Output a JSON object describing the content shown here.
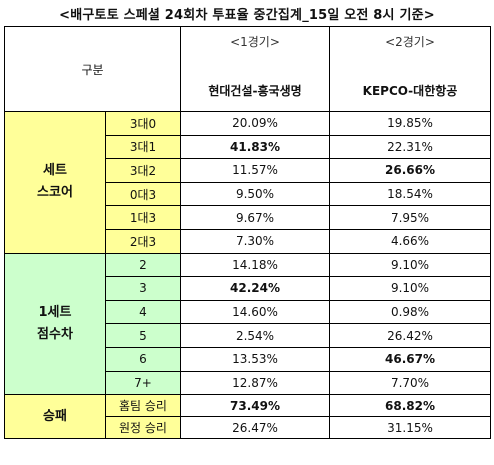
{
  "title": "<배구토토 스페셜 24회차 투표율 중간집계_15일 오전 8시 기준>",
  "header": {
    "category": "구분",
    "col1_round": "<1경기>",
    "col1_match": "현대건설-흥국생명",
    "col2_round": "<2경기>",
    "col2_match": "KEPCO-대한항공"
  },
  "groups": [
    {
      "label_line1": "세트",
      "label_line2": "스코어",
      "color": "#ffff99",
      "rows": [
        {
          "label": "3대0",
          "v1": "20.09%",
          "v2": "19.85%",
          "b1": false,
          "b2": false
        },
        {
          "label": "3대1",
          "v1": "41.83%",
          "v2": "22.31%",
          "b1": true,
          "b2": false
        },
        {
          "label": "3대2",
          "v1": "11.57%",
          "v2": "26.66%",
          "b1": false,
          "b2": true
        },
        {
          "label": "0대3",
          "v1": "9.50%",
          "v2": "18.54%",
          "b1": false,
          "b2": false
        },
        {
          "label": "1대3",
          "v1": "9.67%",
          "v2": "7.95%",
          "b1": false,
          "b2": false
        },
        {
          "label": "2대3",
          "v1": "7.30%",
          "v2": "4.66%",
          "b1": false,
          "b2": false
        }
      ]
    },
    {
      "label_line1": "1세트",
      "label_line2": "점수차",
      "color": "#ccffcc",
      "rows": [
        {
          "label": "2",
          "v1": "14.18%",
          "v2": "9.10%",
          "b1": false,
          "b2": false
        },
        {
          "label": "3",
          "v1": "42.24%",
          "v2": "9.10%",
          "b1": true,
          "b2": false
        },
        {
          "label": "4",
          "v1": "14.60%",
          "v2": "0.98%",
          "b1": false,
          "b2": false
        },
        {
          "label": "5",
          "v1": "2.54%",
          "v2": "26.42%",
          "b1": false,
          "b2": false
        },
        {
          "label": "6",
          "v1": "13.53%",
          "v2": "46.67%",
          "b1": false,
          "b2": true
        },
        {
          "label": "7+",
          "v1": "12.87%",
          "v2": "7.70%",
          "b1": false,
          "b2": false
        }
      ]
    },
    {
      "label_line1": "승패",
      "label_line2": "",
      "color": "#ffff99",
      "rows": [
        {
          "label": "홈팀 승리",
          "v1": "73.49%",
          "v2": "68.82%",
          "b1": true,
          "b2": true
        },
        {
          "label": "원정 승리",
          "v1": "26.47%",
          "v2": "31.15%",
          "b1": false,
          "b2": false
        }
      ]
    }
  ]
}
